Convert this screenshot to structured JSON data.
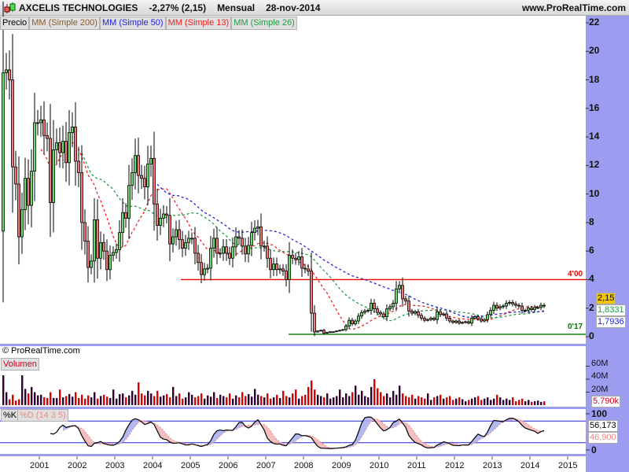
{
  "header": {
    "company": "AXCELIS TECHNOLOGIES",
    "change": "-2,27% (2,15)",
    "period": "Mensual",
    "date": "28-nov-2014",
    "site": "www.ProRealTime.com"
  },
  "legend": {
    "price": "Precio",
    "ma200": "MM (Simple 200)",
    "ma50": "MM (Simple 50)",
    "ma13": "MM (Simple 13)",
    "ma26": "MM (Simple 26)"
  },
  "copyright": "© ProRealTime.com",
  "volume_panel": {
    "label": "Volumen",
    "ticks": [
      "60M",
      "40M",
      "20M"
    ],
    "last": "5.790k"
  },
  "stoch_panel": {
    "k_label": "%K",
    "d_label": "%D (14 3 5)",
    "ticks": [
      "100",
      "0"
    ],
    "k_last": "56,173",
    "d_last": "46,900"
  },
  "price_axis": {
    "ticks": [
      "22",
      "20",
      "18",
      "16",
      "14",
      "12",
      "10",
      "8",
      "6",
      "4",
      "2",
      "0"
    ],
    "last": "2,15",
    "ma26_last": "1,8331",
    "ma50_last": "1,7936"
  },
  "lines": {
    "resistance_label": "4'00",
    "resistance": 4.0,
    "support_label": "0'17",
    "support": 0.17
  },
  "colors": {
    "up": "#66dd66",
    "down": "#ee7777",
    "ma13": "#ee2222",
    "ma26": "#229944",
    "ma50": "#2222dd",
    "ma200": "#8b5a2b",
    "vol_up": "#330033",
    "vol_down": "#dd0000",
    "axis_bg": "#9c9cf0"
  },
  "chart_data": {
    "type": "candlestick",
    "years": [
      "2001",
      "2002",
      "2003",
      "2004",
      "2005",
      "2006",
      "2007",
      "2008",
      "2009",
      "2010",
      "2011",
      "2012",
      "2013",
      "2014",
      "2015"
    ],
    "ylim": [
      0,
      22
    ],
    "first_open": 7.4,
    "close": [
      18.5,
      18.7,
      18.0,
      11.9,
      10.7,
      7.0,
      8.9,
      11.1,
      9.2,
      11.6,
      15.0,
      15.0,
      15.2,
      14.1,
      13.9,
      9.4,
      13.1,
      13.6,
      12.9,
      13.7,
      12.2,
      14.3,
      14.7,
      12.3,
      11.5,
      8.0,
      6.7,
      4.85,
      5.3,
      8.2,
      5.5,
      6.6,
      6.0,
      4.7,
      5.7,
      5.9,
      6.1,
      7.3,
      8.7,
      8.3,
      10.6,
      11.5,
      12.7,
      11.3,
      11.1,
      10.5,
      12.1,
      12.5,
      9.3,
      7.8,
      8.3,
      8.6,
      8.5,
      6.5,
      7.0,
      7.5,
      6.8,
      6.2,
      6.6,
      6.9,
      6.9,
      5.85,
      5.2,
      4.35,
      4.75,
      4.8,
      6.2,
      6.9,
      5.85,
      5.85,
      6.3,
      5.85,
      5.5,
      6.3,
      7.0,
      6.9,
      6.35,
      5.8,
      6.4,
      7.3,
      7.6,
      7.7,
      6.35,
      6.35,
      5.5,
      4.7,
      5.1,
      4.7,
      4.75,
      4.6,
      4.0,
      5.7,
      5.5,
      5.4,
      5.6,
      4.8,
      4.75,
      4.6,
      1.65,
      0.33,
      0.4,
      0.45,
      0.25,
      0.3,
      0.35,
      0.35,
      0.4,
      0.45,
      0.5,
      0.75,
      1.15,
      0.9,
      1.1,
      1.45,
      1.7,
      1.8,
      1.85,
      2.35,
      1.95,
      1.7,
      1.6,
      1.4,
      1.95,
      2.1,
      2.35,
      3.35,
      3.6,
      2.65,
      2.5,
      1.8,
      1.65,
      1.75,
      1.5,
      1.3,
      1.15,
      1.2,
      1.3,
      1.2,
      1.75,
      1.55,
      1.6,
      1.3,
      1.1,
      1.0,
      1.1,
      0.95,
      1.0,
      1.05,
      0.95,
      1.3,
      1.4,
      1.25,
      1.1,
      1.2,
      1.55,
      1.85,
      2.2,
      2.0,
      2.1,
      2.15,
      2.35,
      2.4,
      2.3,
      2.2,
      2.15,
      1.85,
      1.85,
      2.0,
      1.9,
      2.05,
      2.05,
      2.2,
      2.15
    ],
    "volume_millions": [
      46,
      20,
      9,
      16,
      7,
      9,
      46,
      25,
      18,
      28,
      20,
      15,
      16,
      12,
      11,
      20,
      11,
      11,
      24,
      12,
      14,
      17,
      13,
      20,
      11,
      16,
      10,
      15,
      12,
      20,
      10,
      14,
      16,
      13,
      11,
      24,
      10,
      17,
      18,
      12,
      15,
      22,
      16,
      35,
      18,
      15,
      22,
      18,
      14,
      22,
      13,
      15,
      17,
      12,
      28,
      14,
      18,
      10,
      12,
      20,
      16,
      12,
      14,
      18,
      10,
      15,
      13,
      20,
      11,
      16,
      14,
      12,
      18,
      10,
      15,
      12,
      20,
      14,
      17,
      13,
      25,
      16,
      14,
      12,
      18,
      10,
      12,
      16,
      11,
      22,
      14,
      12,
      18,
      24,
      10,
      14,
      16,
      28,
      38,
      24,
      16,
      14,
      12,
      18,
      10,
      12,
      14,
      24,
      12,
      18,
      14,
      20,
      30,
      16,
      22,
      14,
      12,
      28,
      40,
      26,
      20,
      14,
      18,
      12,
      22,
      16,
      30,
      18,
      14,
      12,
      16,
      10,
      14,
      12,
      10,
      18,
      8,
      12,
      14,
      16,
      10,
      12,
      14,
      8,
      10,
      12,
      9,
      6,
      8,
      10,
      12,
      14,
      8,
      10,
      12,
      8,
      10,
      16,
      12,
      8,
      10,
      8,
      12,
      6,
      8,
      10,
      6,
      8,
      5,
      6,
      7,
      5,
      5.79
    ],
    "volume_ylim": [
      0,
      70
    ],
    "stochastic": {
      "k_period": 14,
      "k_smooth": 3,
      "d_period": 5,
      "ylim": [
        0,
        100
      ],
      "bands": [
        80,
        20
      ]
    }
  }
}
